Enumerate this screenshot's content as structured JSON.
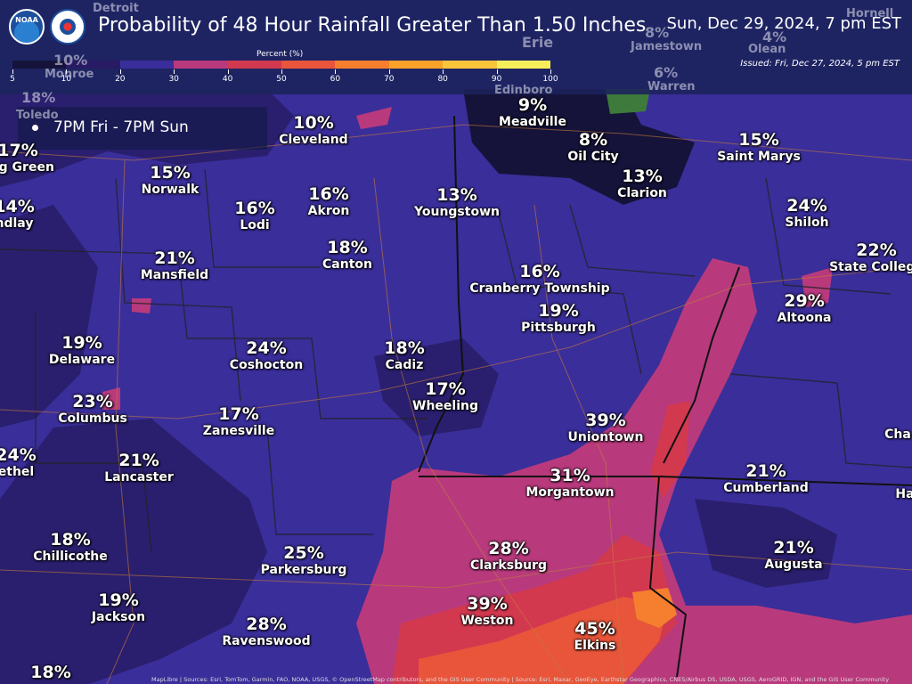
{
  "header": {
    "title": "Probability of 48 Hour Rainfall Greater Than 1.50 Inches",
    "valid_time": "Sun, Dec 29, 2024, 7 pm EST",
    "issued": "Issued: Fri, Dec 27, 2024, 5 pm EST",
    "logo_noaa_text": "NOAA",
    "logo_nws_text": "NATIONAL WEATHER SERVICE"
  },
  "legend": {
    "title": "Percent (%)",
    "ticks": [
      "5",
      "10",
      "20",
      "30",
      "40",
      "50",
      "60",
      "70",
      "80",
      "90",
      "100"
    ],
    "colors": [
      "#15133a",
      "#281b63",
      "#3a2e9a",
      "#b83a7d",
      "#d2394f",
      "#e8553a",
      "#f57f2f",
      "#f9a22a",
      "#f8c53a",
      "#f7ef5a"
    ]
  },
  "period": {
    "label": "7PM Fri - 7PM Sun"
  },
  "map_data": {
    "points": [
      {
        "value": "10%",
        "name": "Cleveland"
      },
      {
        "value": "9%",
        "name": "Meadville"
      },
      {
        "value": "8%",
        "name": "Oil City"
      },
      {
        "value": "15%",
        "name": "Saint Marys"
      },
      {
        "value": "15%",
        "name": "Norwalk"
      },
      {
        "value": "13%",
        "name": "Clarion"
      },
      {
        "value": "16%",
        "name": "Akron"
      },
      {
        "value": "13%",
        "name": "Youngstown"
      },
      {
        "value": "16%",
        "name": "Lodi"
      },
      {
        "value": "24%",
        "name": "Shiloh"
      },
      {
        "value": "14%",
        "name": "ndlay"
      },
      {
        "value": "17%",
        "name": "ling Green"
      },
      {
        "value": "18%",
        "name": "Canton"
      },
      {
        "value": "22%",
        "name": "State College"
      },
      {
        "value": "21%",
        "name": "Mansfield"
      },
      {
        "value": "16%",
        "name": "Cranberry Township"
      },
      {
        "value": "29%",
        "name": "Altoona"
      },
      {
        "value": "19%",
        "name": "Pittsburgh"
      },
      {
        "value": "19%",
        "name": "Delaware"
      },
      {
        "value": "24%",
        "name": "Coshocton"
      },
      {
        "value": "18%",
        "name": "Cadiz"
      },
      {
        "value": "17%",
        "name": "Wheeling"
      },
      {
        "value": "23%",
        "name": "Columbus"
      },
      {
        "value": "17%",
        "name": "Zanesville"
      },
      {
        "value": "39%",
        "name": "Uniontown"
      },
      {
        "value": "24%",
        "name": "ethel"
      },
      {
        "value": "21%",
        "name": "Lancaster"
      },
      {
        "value": "31%",
        "name": "Morgantown"
      },
      {
        "value": "21%",
        "name": "Cumberland"
      },
      {
        "value": "18%",
        "name": "Chillicothe"
      },
      {
        "value": "25%",
        "name": "Parkersburg"
      },
      {
        "value": "28%",
        "name": "Clarksburg"
      },
      {
        "value": "21%",
        "name": "Augusta"
      },
      {
        "value": "19%",
        "name": "Jackson"
      },
      {
        "value": "39%",
        "name": "Weston"
      },
      {
        "value": "28%",
        "name": "Ravenswood"
      },
      {
        "value": "45%",
        "name": "Elkins"
      },
      {
        "value": "18%",
        "name": ""
      },
      {
        "value": "",
        "name": "Cha"
      },
      {
        "value": "",
        "name": "Ha"
      }
    ],
    "background_labels": [
      {
        "text": "Detroit"
      },
      {
        "text": "10%"
      },
      {
        "text": "Monroe"
      },
      {
        "text": "18%"
      },
      {
        "text": "Toledo"
      },
      {
        "text": "Erie"
      },
      {
        "text": "8%"
      },
      {
        "text": "Jamestown"
      },
      {
        "text": "4%"
      },
      {
        "text": "Olean"
      },
      {
        "text": "6%"
      },
      {
        "text": "Warren"
      },
      {
        "text": "Hornell"
      },
      {
        "text": "Edinboro"
      }
    ]
  },
  "attribution": "MapLibre | Sources: Esri, TomTom, Garmin, FAO, NOAA, USGS, © OpenStreetMap contributors, and the GIS User Community | Source: Esri, Maxar, GeoEye, Earthstar Geographics, CNES/Airbus DS, USDA, USGS, AeroGRID, IGN, and the GIS User Community"
}
